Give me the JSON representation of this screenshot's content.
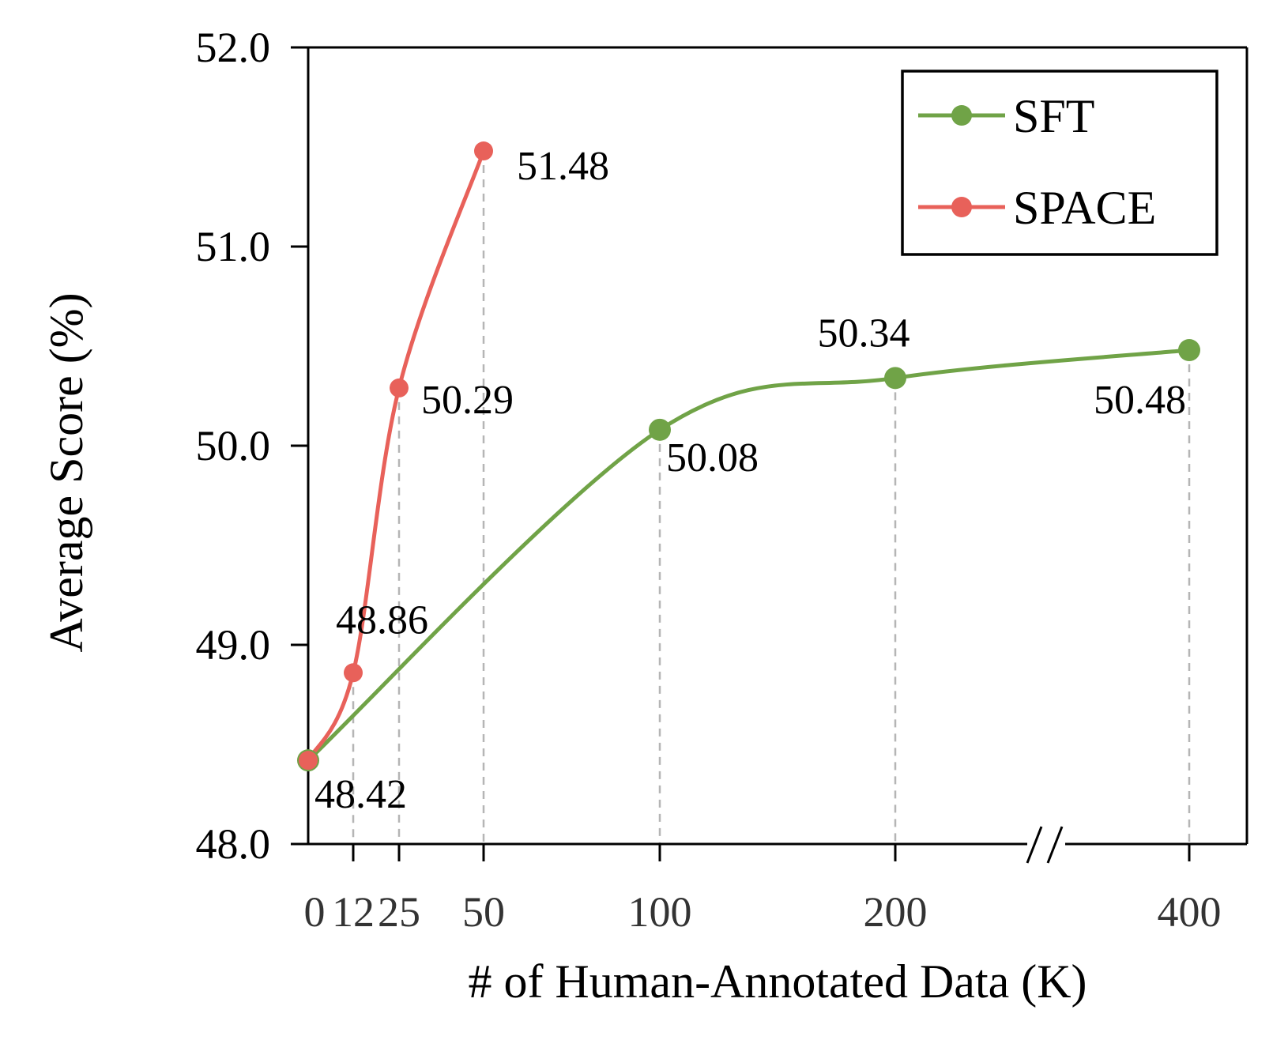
{
  "chart_data": {
    "type": "line",
    "xlabel": "# of Human-Annotated Data (K)",
    "ylabel": "Average Score (%)",
    "ylim": [
      48.0,
      52.0
    ],
    "yticks": [
      "48.0",
      "49.0",
      "50.0",
      "51.0",
      "52.0"
    ],
    "xticks": [
      "0",
      "12",
      "25",
      "50",
      "100",
      "200",
      "400"
    ],
    "x_axis_break": "between 200 and 400",
    "legend_position": "top-right",
    "series": [
      {
        "name": "SFT",
        "color": "#70a347",
        "x": [
          0,
          100,
          200,
          400
        ],
        "values": [
          48.42,
          50.08,
          50.34,
          50.48
        ],
        "labels": [
          "48.42",
          "50.08",
          "50.34",
          "50.48"
        ]
      },
      {
        "name": "SPACE",
        "color": "#e8615a",
        "x": [
          0,
          12,
          25,
          50
        ],
        "values": [
          48.42,
          48.86,
          50.29,
          51.48
        ],
        "labels": [
          "",
          "48.86",
          "50.29",
          "51.48"
        ]
      }
    ]
  }
}
